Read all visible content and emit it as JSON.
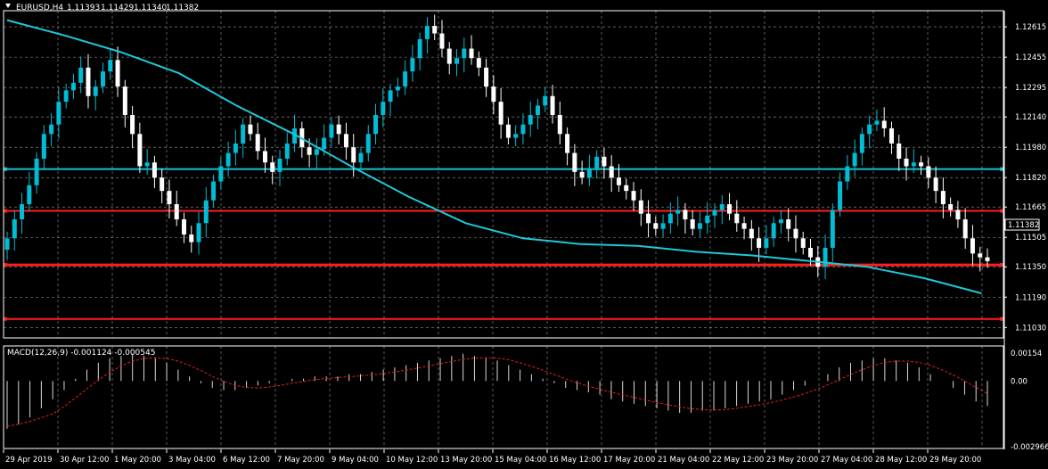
{
  "header": {
    "symbol": "EURUSD,H4",
    "open": "1.11393",
    "high": "1.11429",
    "low": "1.11340",
    "close": "1.11382"
  },
  "price_axis": {
    "ticks": [
      "1.12615",
      "1.12455",
      "1.12295",
      "1.12140",
      "1.11980",
      "1.11820",
      "1.11665",
      "1.11505",
      "1.11350",
      "1.11190",
      "1.11030"
    ],
    "current_label": "1.11382"
  },
  "macd_panel": {
    "label": "MACD(12,26,9) -0.001124 -0.000545",
    "ticks": [
      "0.00154",
      "0.00",
      "-0.002966"
    ]
  },
  "time_axis": {
    "labels": [
      "29 Apr 2019",
      "30 Apr 12:00",
      "1 May 20:00",
      "3 May 04:00",
      "6 May 12:00",
      "7 May 20:00",
      "9 May 04:00",
      "10 May 12:00",
      "13 May 20:00",
      "15 May 04:00",
      "16 May 12:00",
      "17 May 20:00",
      "21 May 04:00",
      "22 May 12:00",
      "23 May 20:00",
      "27 May 04:00",
      "28 May 12:00",
      "29 May 20:00"
    ]
  },
  "colors": {
    "background": "#000000",
    "grid": "#9a9a9a",
    "candle": "#ffffff",
    "candle_up": "#00bcd4",
    "moving_average": "#1ec8d8",
    "support_line": "#ff1e1e",
    "resistance_line": "#17c3d0",
    "macd_signal": "#e02020"
  },
  "chart_data": {
    "type": "candlestick",
    "symbol": "EURUSD",
    "timeframe": "H4",
    "ylim": [
      1.10975,
      1.127
    ],
    "current_price": 1.11382,
    "horizontal_lines": [
      {
        "price": 1.11865,
        "color": "#17c3d0"
      },
      {
        "price": 1.11645,
        "color": "#ff1e1e"
      },
      {
        "price": 1.1136,
        "color": "#ff1e1e"
      },
      {
        "price": 1.11075,
        "color": "#ff1e1e"
      }
    ],
    "moving_average": [
      1.1265,
      1.1257,
      1.1248,
      1.1237,
      1.122,
      1.1205,
      1.1188,
      1.1172,
      1.1158,
      1.115,
      1.1147,
      1.1146,
      1.1143,
      1.1141,
      1.1138,
      1.1135,
      1.1129,
      1.1121
    ],
    "ma_end_index": 16.9,
    "close_series": [
      1.115,
      1.116,
      1.1168,
      1.1178,
      1.1192,
      1.1205,
      1.121,
      1.1222,
      1.1228,
      1.1232,
      1.124,
      1.1225,
      1.123,
      1.1238,
      1.1244,
      1.123,
      1.1215,
      1.1205,
      1.1188,
      1.119,
      1.1182,
      1.1175,
      1.1168,
      1.116,
      1.1152,
      1.1148,
      1.1158,
      1.117,
      1.118,
      1.1188,
      1.1195,
      1.12,
      1.121,
      1.1205,
      1.1196,
      1.119,
      1.1185,
      1.1192,
      1.12,
      1.1208,
      1.1198,
      1.1194,
      1.1197,
      1.1203,
      1.121,
      1.1205,
      1.1198,
      1.119,
      1.1195,
      1.1205,
      1.1215,
      1.1222,
      1.1228,
      1.123,
      1.1238,
      1.1245,
      1.1255,
      1.1262,
      1.1258,
      1.125,
      1.1242,
      1.1245,
      1.125,
      1.1245,
      1.124,
      1.123,
      1.1222,
      1.121,
      1.1203,
      1.1205,
      1.121,
      1.1215,
      1.122,
      1.1225,
      1.1215,
      1.1205,
      1.1195,
      1.1185,
      1.1182,
      1.1187,
      1.1193,
      1.1188,
      1.1182,
      1.1178,
      1.1175,
      1.117,
      1.1163,
      1.1158,
      1.1155,
      1.1158,
      1.1163,
      1.1165,
      1.116,
      1.1155,
      1.1158,
      1.1162,
      1.1165,
      1.1168,
      1.1163,
      1.1158,
      1.1155,
      1.115,
      1.1145,
      1.115,
      1.1158,
      1.116,
      1.1155,
      1.115,
      1.1145,
      1.114,
      1.1135,
      1.1145,
      1.1165,
      1.118,
      1.1188,
      1.1195,
      1.1205,
      1.121,
      1.1212,
      1.1208,
      1.12,
      1.1192,
      1.1188,
      1.119,
      1.1188,
      1.1182,
      1.1175,
      1.1168,
      1.1165,
      1.116,
      1.115,
      1.1142,
      1.114,
      1.1138
    ],
    "macd_values": [
      -0.0021,
      -0.0019,
      -0.0016,
      -0.0012,
      -0.0008,
      -0.0004,
      0.0001,
      0.0005,
      0.0008,
      0.001,
      0.0011,
      0.0012,
      0.0011,
      0.001,
      0.0008,
      0.0005,
      0.0002,
      -0.0001,
      -0.0003,
      -0.0004,
      -0.0004,
      -0.0003,
      -0.0002,
      -0.0001,
      0.0,
      0.0001,
      0.0001,
      0.0002,
      0.0002,
      0.0002,
      0.0003,
      0.0003,
      0.0004,
      0.0005,
      0.0006,
      0.0007,
      0.0008,
      0.0009,
      0.001,
      0.0011,
      0.0012,
      0.0011,
      0.001,
      0.0009,
      0.0007,
      0.0005,
      0.0003,
      0.0001,
      -0.0001,
      -0.0003,
      -0.0004,
      -0.0005,
      -0.0006,
      -0.0008,
      -0.0009,
      -0.001,
      -0.0011,
      -0.0012,
      -0.0013,
      -0.0014,
      -0.0014,
      -0.0013,
      -0.0013,
      -0.0012,
      -0.0011,
      -0.001,
      -0.0009,
      -0.0008,
      -0.0006,
      -0.0004,
      -0.0002,
      0.0,
      0.0003,
      0.0006,
      0.0008,
      0.0009,
      0.001,
      0.001,
      0.0009,
      0.0008,
      0.0006,
      0.0003,
      0.0,
      -0.0003,
      -0.0006,
      -0.0009,
      -0.0011
    ]
  }
}
